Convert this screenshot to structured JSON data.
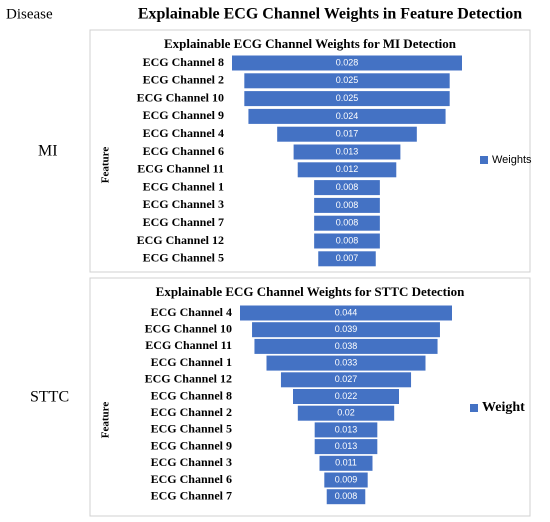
{
  "figure": {
    "column_header": "Disease",
    "title": "Explainable ECG Channel Weights in Feature Detection"
  },
  "chart_data": [
    {
      "type": "funnel",
      "row_label": "MI",
      "title": "Explainable ECG Channel Weights for MI Detection",
      "y_label": "Feature",
      "legend": "right",
      "categories": [
        "ECG Channel 8",
        "ECG Channel 2",
        "ECG Channel 10",
        "ECG Channel 9",
        "ECG Channel 4",
        "ECG Channel 6",
        "ECG Channel 11",
        "ECG Channel 1",
        "ECG Channel 3",
        "ECG Channel 7",
        "ECG Channel 12",
        "ECG Channel 5"
      ],
      "series": [
        {
          "name": "Weights",
          "color": "#4472c4",
          "values": [
            0.028,
            0.025,
            0.025,
            0.024,
            0.017,
            0.013,
            0.012,
            0.008,
            0.008,
            0.008,
            0.008,
            0.007
          ]
        }
      ]
    },
    {
      "type": "funnel",
      "row_label": "STTC",
      "title": "Explainable ECG Channel Weights for STTC Detection",
      "y_label": "Feature",
      "legend": "right",
      "categories": [
        "ECG Channel 4",
        "ECG Channel 10",
        "ECG Channel 11",
        "ECG Channel 1",
        "ECG Channel 12",
        "ECG Channel 8",
        "ECG Channel 2",
        "ECG Channel 5",
        "ECG Channel 9",
        "ECG Channel 3",
        "ECG Channel 6",
        "ECG Channel 7"
      ],
      "series": [
        {
          "name": "Weight",
          "color": "#4472c4",
          "values": [
            0.044,
            0.039,
            0.038,
            0.033,
            0.027,
            0.022,
            0.02,
            0.013,
            0.013,
            0.011,
            0.009,
            0.008
          ]
        }
      ]
    }
  ]
}
